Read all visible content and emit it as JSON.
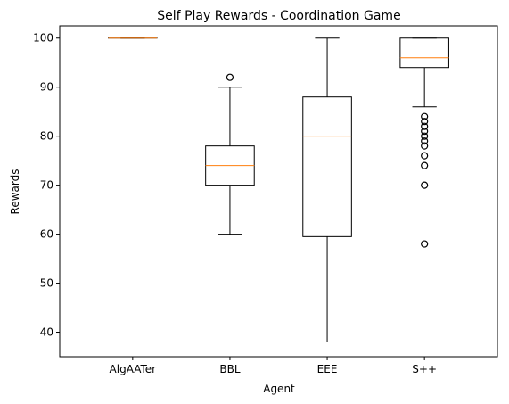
{
  "chart_data": {
    "type": "box",
    "title": "Self Play Rewards - Coordination Game",
    "xlabel": "Agent",
    "ylabel": "Rewards",
    "ylim": [
      35,
      102.5
    ],
    "yticks": [
      40,
      50,
      60,
      70,
      80,
      90,
      100
    ],
    "categories": [
      "AlgAATer",
      "BBL",
      "EEE",
      "S++"
    ],
    "boxes": [
      {
        "name": "AlgAATer",
        "whisker_low": 100,
        "q1": 100,
        "median": 100,
        "q3": 100,
        "whisker_high": 100,
        "fliers": []
      },
      {
        "name": "BBL",
        "whisker_low": 60,
        "q1": 70,
        "median": 74,
        "q3": 78,
        "whisker_high": 90,
        "fliers": [
          92
        ]
      },
      {
        "name": "EEE",
        "whisker_low": 38,
        "q1": 59.5,
        "median": 80,
        "q3": 88,
        "whisker_high": 100,
        "fliers": []
      },
      {
        "name": "S++",
        "whisker_low": 86,
        "q1": 94,
        "median": 96,
        "q3": 100,
        "whisker_high": 100,
        "fliers": [
          84,
          83,
          82,
          81,
          80,
          79,
          78,
          76,
          74,
          70,
          58
        ]
      }
    ],
    "colors": {
      "box": "#000000",
      "median": "#ff7f0e",
      "flier": "#000000"
    },
    "grid": false,
    "legend": "none"
  }
}
